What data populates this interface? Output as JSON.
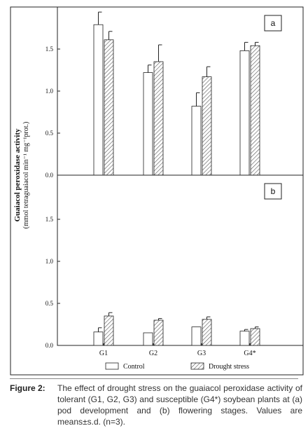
{
  "chart_data": [
    {
      "type": "bar",
      "panel_label": "a",
      "categories": [
        "G1",
        "G2",
        "G3",
        "G4*"
      ],
      "series": [
        {
          "name": "Control",
          "values": [
            1.79,
            1.22,
            0.82,
            1.48
          ],
          "errors": [
            0.15,
            0.09,
            0.16,
            0.1
          ]
        },
        {
          "name": "Drought stress",
          "values": [
            1.61,
            1.35,
            1.17,
            1.54
          ],
          "errors": [
            0.1,
            0.2,
            0.12,
            0.04
          ]
        }
      ],
      "ylim": [
        0,
        1.95
      ],
      "yticks": [
        "0.0",
        "0.5",
        "1.0",
        "1.5"
      ]
    },
    {
      "type": "bar",
      "panel_label": "b",
      "categories": [
        "G1",
        "G2",
        "G3",
        "G4*"
      ],
      "series": [
        {
          "name": "Control",
          "values": [
            0.16,
            0.15,
            0.22,
            0.17
          ],
          "errors": [
            0.05,
            0.0,
            0.0,
            0.02
          ]
        },
        {
          "name": "Drought stress",
          "values": [
            0.35,
            0.3,
            0.31,
            0.2
          ],
          "errors": [
            0.04,
            0.02,
            0.03,
            0.02
          ]
        }
      ],
      "ylim": [
        0,
        1.95
      ],
      "yticks": [
        "0.0",
        "0.5",
        "1.0",
        "1.5"
      ]
    }
  ],
  "axis": {
    "ylabel_line1": "Guaiacol peroxidase activity",
    "ylabel_line2": "(mmol tetraguaiacol min⁻¹ mg⁻¹prot.)"
  },
  "legend": {
    "control": "Control",
    "drought": "Drought stress"
  },
  "caption": {
    "label": "Figure 2:",
    "text": "The effect of drought stress on the guaiacol peroxidase activity of tolerant (G1, G2, G3) and susceptible (G4*) soybean plants at (a) pod development and (b) flowering stages. Values are means±s.d. (n=3)."
  },
  "colors": {
    "control_fill": "#ffffff",
    "drought_hatch": "#555555",
    "axis": "#222222"
  }
}
